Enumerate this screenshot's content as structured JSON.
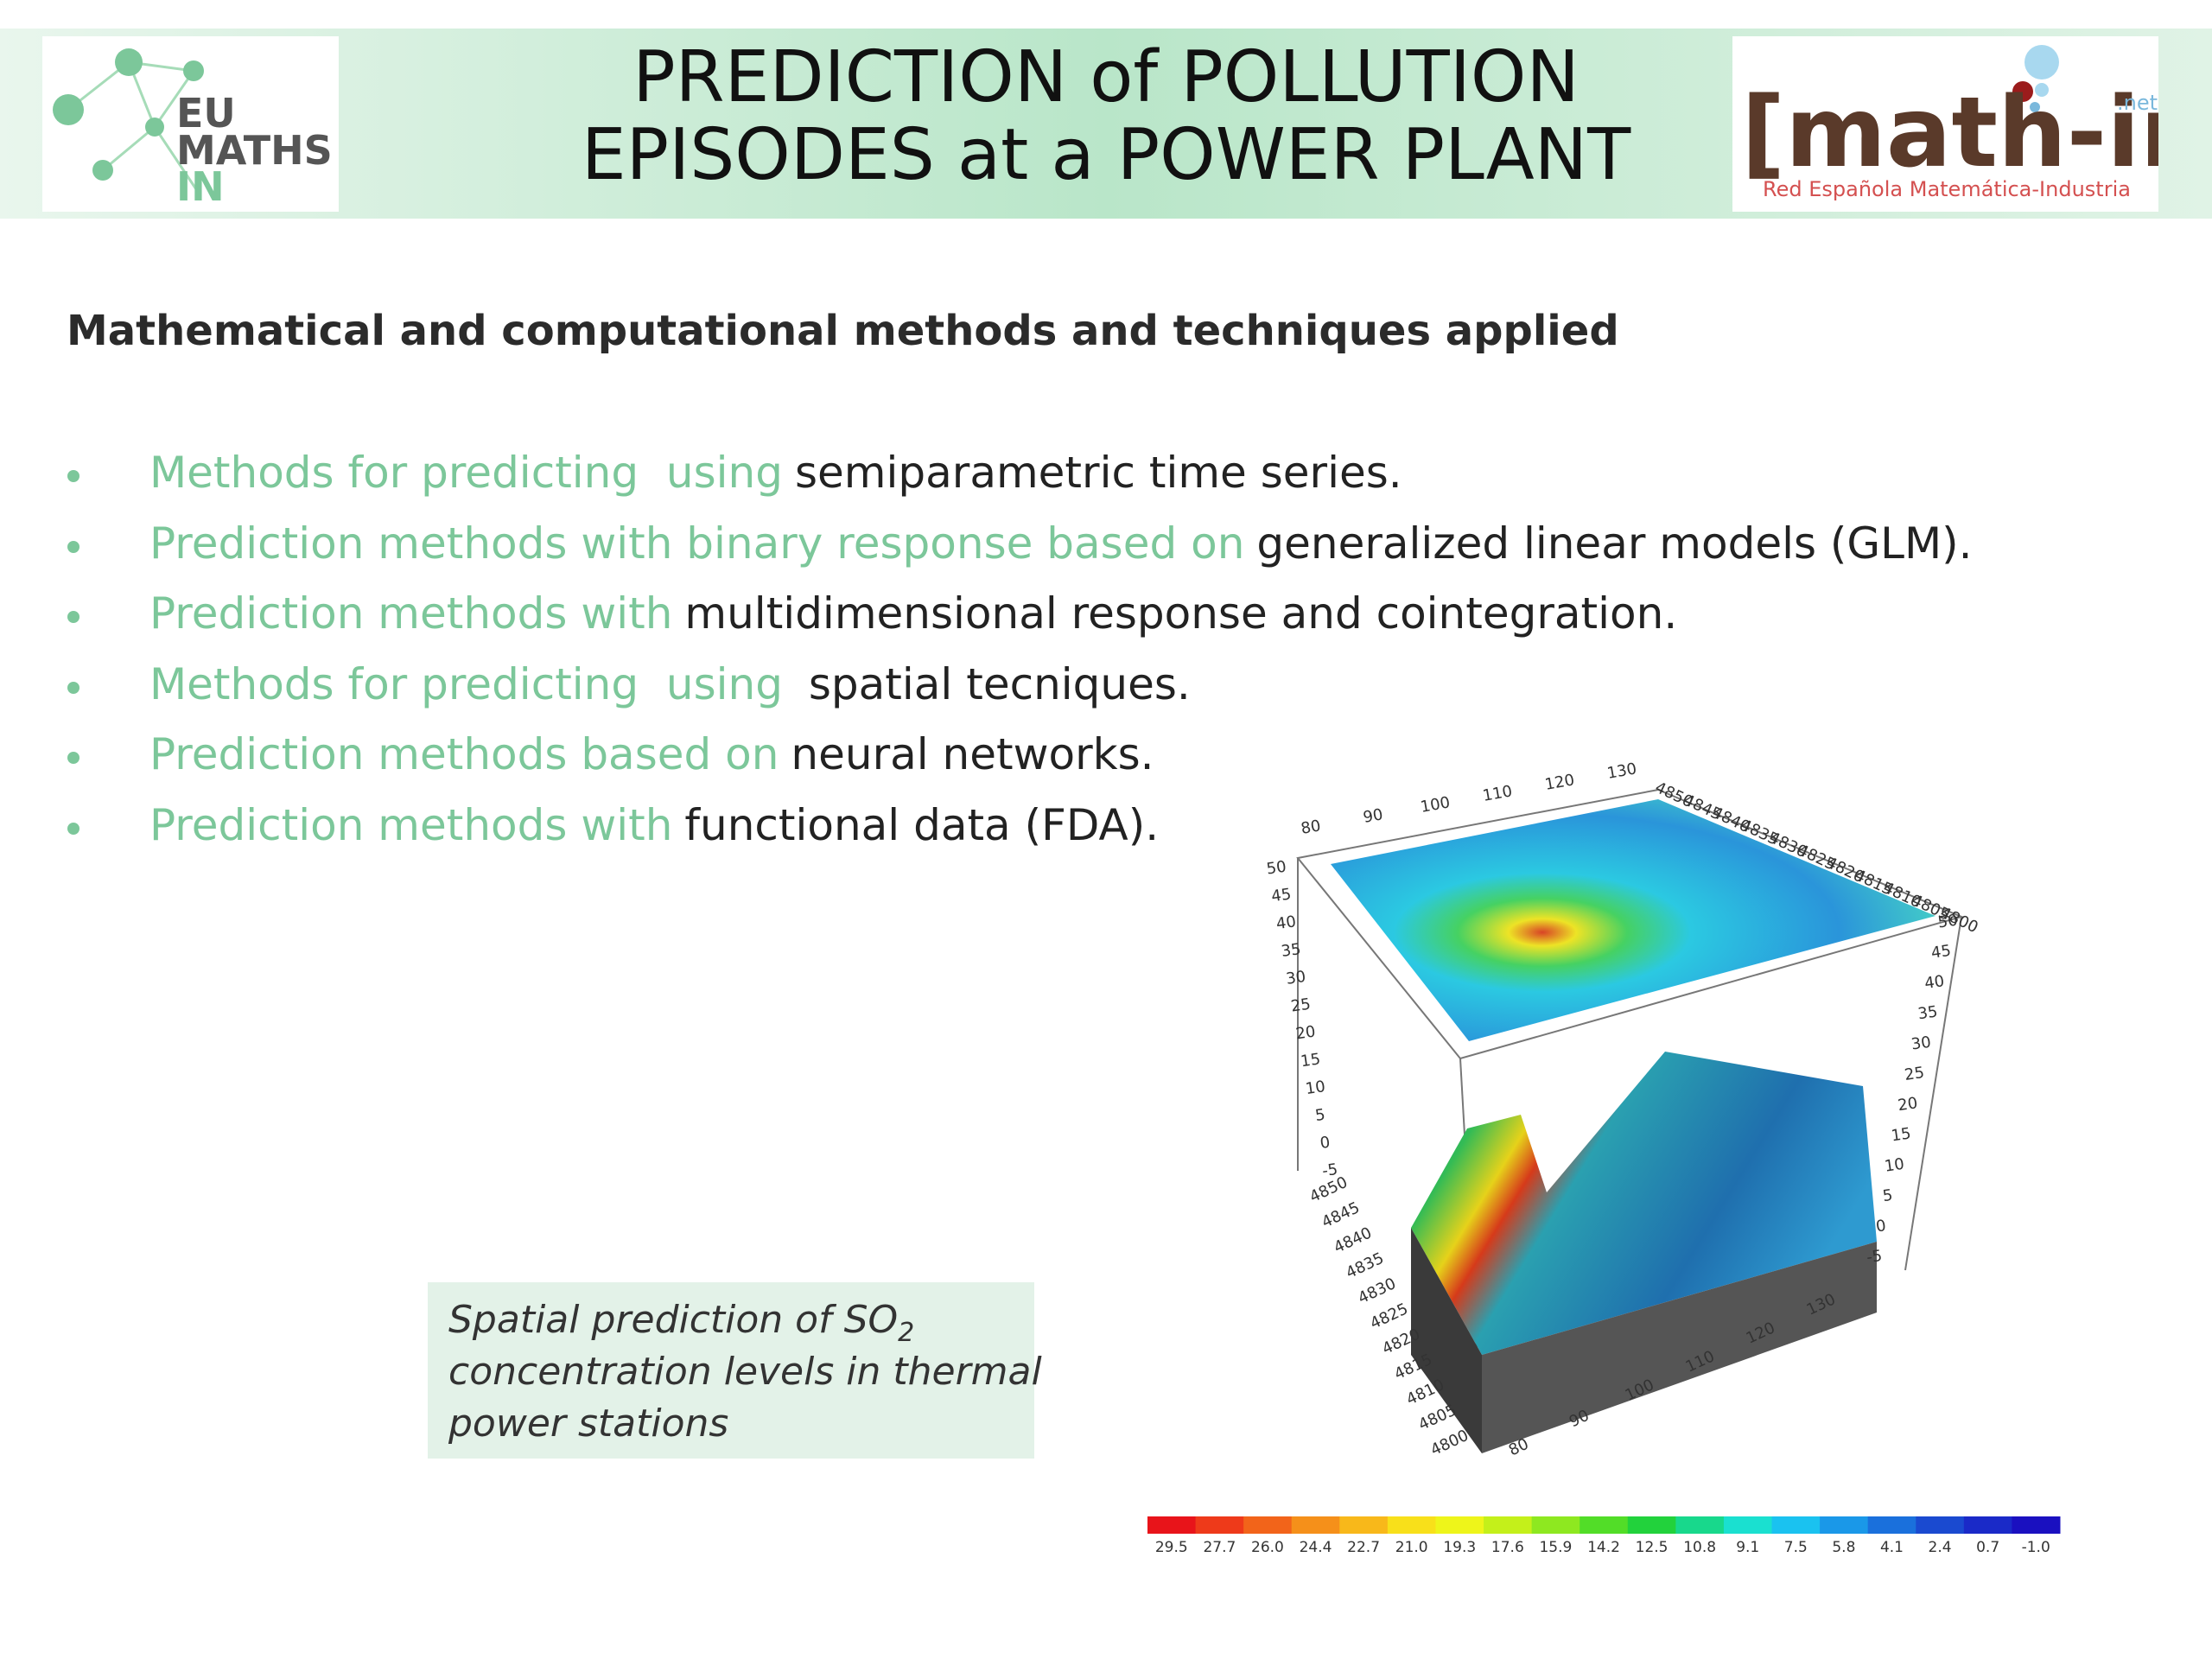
{
  "header": {
    "title_lines": [
      "PREDICTION of POLLUTION",
      "EPISODES at a POWER PLANT"
    ],
    "left_logo": [
      "EU",
      "MATHS",
      "IN"
    ],
    "right_logo": {
      "name": "[math-in]",
      "suffix": ".net",
      "tagline": "Red Española Matemática-Industria"
    }
  },
  "heading": "Mathematical and computational methods and techniques applied",
  "bullets": [
    {
      "lead": "Methods for predicting  using",
      "rest": "semiparametric time series."
    },
    {
      "lead": "Prediction methods with binary response based on",
      "rest": "generalized linear models (GLM)."
    },
    {
      "lead": "Prediction methods with",
      "rest": "multidimensional response and cointegration."
    },
    {
      "lead": "Methods for predicting  using",
      "rest": " spatial tecniques."
    },
    {
      "lead": "Prediction methods based on",
      "rest": "neural networks."
    },
    {
      "lead": "Prediction methods with",
      "rest": "functional data (FDA)."
    }
  ],
  "caption": {
    "before": "Spatial prediction of SO",
    "subscript": "2",
    "line2": "concentration levels in thermal",
    "line3": "power stations"
  },
  "plot": {
    "x_ticks": [
      "80",
      "90",
      "100",
      "110",
      "120",
      "130"
    ],
    "z_ticks": [
      "50",
      "45",
      "40",
      "35",
      "30",
      "25",
      "20",
      "15",
      "10",
      "5",
      "0",
      "-5"
    ],
    "y_ticks": [
      "4850",
      "4845",
      "4840",
      "4835",
      "4830",
      "4825",
      "4820",
      "4815",
      "4810",
      "4805",
      "4800"
    ],
    "colorbar": [
      "29.5",
      "27.7",
      "26.0",
      "24.4",
      "22.7",
      "21.0",
      "19.3",
      "17.6",
      "15.9",
      "14.2",
      "12.5",
      "10.8",
      "9.1",
      "7.5",
      "5.8",
      "4.1",
      "2.4",
      "0.7",
      "-1.0"
    ]
  }
}
